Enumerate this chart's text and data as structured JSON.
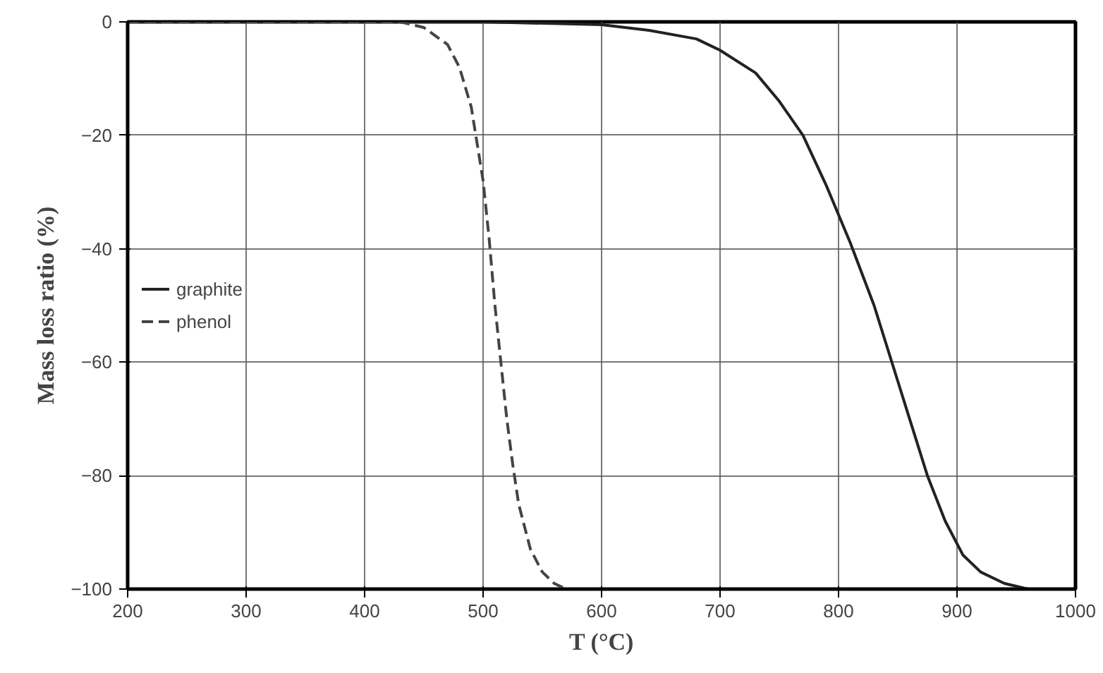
{
  "chart_data": {
    "type": "line",
    "xlabel": "T (°C)",
    "ylabel": "Mass loss ratio (%)",
    "xlim": [
      200,
      1000
    ],
    "ylim": [
      -100,
      0
    ],
    "xticks": [
      200,
      300,
      400,
      500,
      600,
      700,
      800,
      900,
      1000
    ],
    "yticks": [
      -100,
      -80,
      -60,
      -40,
      -20,
      0
    ],
    "grid": true,
    "legend": "left",
    "series": [
      {
        "name": "graphite",
        "color": "#222222",
        "line_style": "solid",
        "x": [
          200,
          400,
          500,
          600,
          640,
          680,
          700,
          730,
          750,
          770,
          790,
          810,
          830,
          845,
          860,
          875,
          890,
          905,
          920,
          940,
          960,
          980,
          1000
        ],
        "values": [
          0,
          0,
          0,
          -0.5,
          -1.5,
          -3,
          -5,
          -9,
          -14,
          -20,
          -29,
          -39,
          -50,
          -60,
          -70,
          -80,
          -88,
          -94,
          -97,
          -99,
          -100,
          -100,
          -100
        ]
      },
      {
        "name": "phenol",
        "color": "#444444",
        "line_style": "dashed",
        "x": [
          200,
          400,
          430,
          450,
          470,
          480,
          490,
          500,
          505,
          510,
          515,
          520,
          525,
          530,
          540,
          550,
          560,
          570,
          580,
          600
        ],
        "values": [
          0,
          0,
          0,
          -1,
          -4,
          -8,
          -15,
          -28,
          -38,
          -50,
          -60,
          -70,
          -78,
          -85,
          -93,
          -97,
          -99,
          -100,
          -100,
          -100
        ]
      }
    ]
  }
}
